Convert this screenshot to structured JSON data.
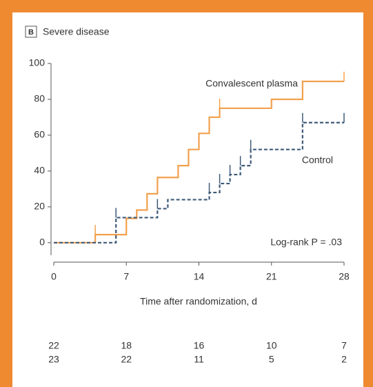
{
  "chart_data": {
    "type": "step",
    "panel_label": "B",
    "title": "Severe disease",
    "xlabel": "Time after randomization, d",
    "xlim": [
      0,
      28
    ],
    "xticks": [
      0,
      7,
      14,
      21,
      28
    ],
    "ylim": [
      -7,
      100
    ],
    "yticks": [
      0,
      20,
      40,
      60,
      80,
      100
    ],
    "series": [
      {
        "name": "Convalescent plasma",
        "color": "#f2a04c",
        "dashed": false,
        "x": [
          0,
          4,
          7,
          8,
          9,
          10,
          12,
          13,
          14,
          15,
          16,
          21,
          24,
          28
        ],
        "values": [
          0,
          4.5,
          13.6,
          18.2,
          27.3,
          36.4,
          43,
          52,
          61,
          70,
          75,
          80,
          90,
          90
        ],
        "censored": [
          4,
          16,
          28
        ]
      },
      {
        "name": "Control",
        "color": "#3d5a78",
        "dashed": true,
        "x": [
          0,
          6,
          10,
          11,
          15,
          16,
          17,
          18,
          19,
          24,
          28
        ],
        "values": [
          0,
          14,
          19,
          24,
          28,
          33,
          38,
          43,
          52,
          67,
          67
        ],
        "censored": [
          6,
          10,
          15,
          16,
          17,
          18,
          19,
          24,
          28
        ]
      }
    ],
    "annotation": "Log-rank P = .03",
    "at_risk": [
      [
        22,
        18,
        16,
        10,
        7
      ],
      [
        23,
        22,
        11,
        5,
        2
      ]
    ]
  }
}
